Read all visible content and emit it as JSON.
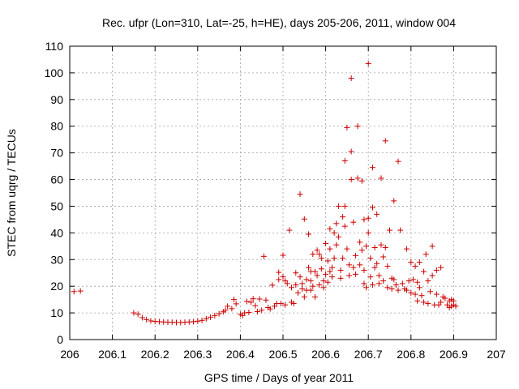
{
  "chart_data": {
    "type": "scatter",
    "title": "Rec. ufpr (Lon=310, Lat=-25, h=HE), days 205-206, 2011, window 004",
    "xlabel": "GPS time / Days of year 2011",
    "ylabel": "STEC from uqrg / TECUs",
    "xlim": [
      206,
      207
    ],
    "ylim": [
      0,
      110
    ],
    "xticks": [
      206,
      206.1,
      206.2,
      206.3,
      206.4,
      206.5,
      206.6,
      206.7,
      206.8,
      206.9,
      207
    ],
    "xtick_labels": [
      "206",
      "206.1",
      "206.2",
      "206.3",
      "206.4",
      "206.5",
      "206.6",
      "206.7",
      "206.8",
      "206.9",
      "207"
    ],
    "yticks": [
      0,
      10,
      20,
      30,
      40,
      50,
      60,
      70,
      80,
      90,
      100,
      110
    ],
    "ytick_labels": [
      "0",
      "10",
      "20",
      "30",
      "40",
      "50",
      "60",
      "70",
      "80",
      "90",
      "100",
      "110"
    ],
    "grid": true,
    "marker": "+",
    "color": "#cc0000",
    "series": [
      {
        "name": "STEC",
        "points": [
          [
            206.01,
            18
          ],
          [
            206.025,
            18.2
          ],
          [
            206.15,
            10
          ],
          [
            206.16,
            9.5
          ],
          [
            206.17,
            8.2
          ],
          [
            206.18,
            7.5
          ],
          [
            206.19,
            7.0
          ],
          [
            206.2,
            6.8
          ],
          [
            206.21,
            6.7
          ],
          [
            206.22,
            6.6
          ],
          [
            206.23,
            6.5
          ],
          [
            206.24,
            6.5
          ],
          [
            206.25,
            6.4
          ],
          [
            206.26,
            6.4
          ],
          [
            206.27,
            6.5
          ],
          [
            206.28,
            6.6
          ],
          [
            206.29,
            6.7
          ],
          [
            206.3,
            6.9
          ],
          [
            206.31,
            7.2
          ],
          [
            206.32,
            7.8
          ],
          [
            206.33,
            8.4
          ],
          [
            206.34,
            9.0
          ],
          [
            206.35,
            9.7
          ],
          [
            206.36,
            10.4
          ],
          [
            206.365,
            11.0
          ],
          [
            206.37,
            12.5
          ],
          [
            206.38,
            11.6
          ],
          [
            206.385,
            15.0
          ],
          [
            206.39,
            13.4
          ],
          [
            206.4,
            9.5
          ],
          [
            206.405,
            9.0
          ],
          [
            206.41,
            10.0
          ],
          [
            206.415,
            14.3
          ],
          [
            206.42,
            10.2
          ],
          [
            206.425,
            14.0
          ],
          [
            206.43,
            15.3
          ],
          [
            206.435,
            12.7
          ],
          [
            206.44,
            10.5
          ],
          [
            206.445,
            15.2
          ],
          [
            206.45,
            11.0
          ],
          [
            206.455,
            31.2
          ],
          [
            206.46,
            14.8
          ],
          [
            206.465,
            12.0
          ],
          [
            206.47,
            11.5
          ],
          [
            206.475,
            20.4
          ],
          [
            206.48,
            12.5
          ],
          [
            206.485,
            13.5
          ],
          [
            206.49,
            25.2
          ],
          [
            206.49,
            22.5
          ],
          [
            206.495,
            13.5
          ],
          [
            206.5,
            23.5
          ],
          [
            206.5,
            31.6
          ],
          [
            206.505,
            22.0
          ],
          [
            206.505,
            13.0
          ],
          [
            206.51,
            21.0
          ],
          [
            206.515,
            41.0
          ],
          [
            206.52,
            14.0
          ],
          [
            206.52,
            19.5
          ],
          [
            206.525,
            13.5
          ],
          [
            206.53,
            25.0
          ],
          [
            206.53,
            20.5
          ],
          [
            206.535,
            17.5
          ],
          [
            206.54,
            54.5
          ],
          [
            206.54,
            23.5
          ],
          [
            206.545,
            21.0
          ],
          [
            206.545,
            19.0
          ],
          [
            206.55,
            45.2
          ],
          [
            206.55,
            16.0
          ],
          [
            206.555,
            22.5
          ],
          [
            206.555,
            18.5
          ],
          [
            206.56,
            39.5
          ],
          [
            206.56,
            27.0
          ],
          [
            206.565,
            25.5
          ],
          [
            206.565,
            22.0
          ],
          [
            206.565,
            18.5
          ],
          [
            206.57,
            32.0
          ],
          [
            206.57,
            20.0
          ],
          [
            206.575,
            25.5
          ],
          [
            206.575,
            16.0
          ],
          [
            206.58,
            33.5
          ],
          [
            206.58,
            24.0
          ],
          [
            206.585,
            32.0
          ],
          [
            206.585,
            20.5
          ],
          [
            206.59,
            30.5
          ],
          [
            206.59,
            26.5
          ],
          [
            206.595,
            22.0
          ],
          [
            206.595,
            19.5
          ],
          [
            206.6,
            36.0
          ],
          [
            206.6,
            24.5
          ],
          [
            206.605,
            29.5
          ],
          [
            206.605,
            21.5
          ],
          [
            206.61,
            41.5
          ],
          [
            206.61,
            34.0
          ],
          [
            206.61,
            25.5
          ],
          [
            206.615,
            27.0
          ],
          [
            206.615,
            23.5
          ],
          [
            206.62,
            40.0
          ],
          [
            206.62,
            30.5
          ],
          [
            206.625,
            43.5
          ],
          [
            206.625,
            35.5
          ],
          [
            206.63,
            50.0
          ],
          [
            206.63,
            38.5
          ],
          [
            206.635,
            26.0
          ],
          [
            206.635,
            23.0
          ],
          [
            206.64,
            46.0
          ],
          [
            206.64,
            30.5
          ],
          [
            206.645,
            67.0
          ],
          [
            206.645,
            50.0
          ],
          [
            206.645,
            42.5
          ],
          [
            206.65,
            79.5
          ],
          [
            206.65,
            34.0
          ],
          [
            206.655,
            28.0
          ],
          [
            206.655,
            24.0
          ],
          [
            206.66,
            98.0
          ],
          [
            206.66,
            70.5
          ],
          [
            206.66,
            60.0
          ],
          [
            206.665,
            44.0
          ],
          [
            206.665,
            27.0
          ],
          [
            206.67,
            31.5
          ],
          [
            206.67,
            24.5
          ],
          [
            206.675,
            80.0
          ],
          [
            206.675,
            60.5
          ],
          [
            206.68,
            36.5
          ],
          [
            206.68,
            28.0
          ],
          [
            206.685,
            59.5
          ],
          [
            206.685,
            33.5
          ],
          [
            206.69,
            45.0
          ],
          [
            206.69,
            26.0
          ],
          [
            206.69,
            21.0
          ],
          [
            206.695,
            35.0
          ],
          [
            206.695,
            19.5
          ],
          [
            206.7,
            103.5
          ],
          [
            206.7,
            45.5
          ],
          [
            206.7,
            40.0
          ],
          [
            206.705,
            30.5
          ],
          [
            206.705,
            23.5
          ],
          [
            206.71,
            64.5
          ],
          [
            206.71,
            49.5
          ],
          [
            206.71,
            20.5
          ],
          [
            206.715,
            34.5
          ],
          [
            206.715,
            27.0
          ],
          [
            206.72,
            47.0
          ],
          [
            206.72,
            28.5
          ],
          [
            206.725,
            24.0
          ],
          [
            206.725,
            21.0
          ],
          [
            206.73,
            60.5
          ],
          [
            206.73,
            35.5
          ],
          [
            206.735,
            31.0
          ],
          [
            206.735,
            22.0
          ],
          [
            206.74,
            74.5
          ],
          [
            206.74,
            34.5
          ],
          [
            206.745,
            27.5
          ],
          [
            206.745,
            19.5
          ],
          [
            206.75,
            41.0
          ],
          [
            206.755,
            23.0
          ],
          [
            206.755,
            19.0
          ],
          [
            206.76,
            52.0
          ],
          [
            206.76,
            22.5
          ],
          [
            206.765,
            20.5
          ],
          [
            206.77,
            66.8
          ],
          [
            206.77,
            18.5
          ],
          [
            206.775,
            41.0
          ],
          [
            206.78,
            21.0
          ],
          [
            206.785,
            19.0
          ],
          [
            206.79,
            34.0
          ],
          [
            206.79,
            18.5
          ],
          [
            206.795,
            22.0
          ],
          [
            206.8,
            29.0
          ],
          [
            206.8,
            17.5
          ],
          [
            206.805,
            22.5
          ],
          [
            206.81,
            27.5
          ],
          [
            206.81,
            17.0
          ],
          [
            206.815,
            21.5
          ],
          [
            206.815,
            14.5
          ],
          [
            206.82,
            29.0
          ],
          [
            206.82,
            19.5
          ],
          [
            206.825,
            16.5
          ],
          [
            206.83,
            25.5
          ],
          [
            206.83,
            14.0
          ],
          [
            206.835,
            32.0
          ],
          [
            206.84,
            22.0
          ],
          [
            206.84,
            13.5
          ],
          [
            206.845,
            18.0
          ],
          [
            206.85,
            35.0
          ],
          [
            206.85,
            24.0
          ],
          [
            206.855,
            13.0
          ],
          [
            206.86,
            26.0
          ],
          [
            206.86,
            17.0
          ],
          [
            206.865,
            13.0
          ],
          [
            206.87,
            27.0
          ],
          [
            206.87,
            14.0
          ],
          [
            206.875,
            16.0
          ],
          [
            206.88,
            15.5
          ],
          [
            206.885,
            13.0
          ],
          [
            206.89,
            14.5
          ],
          [
            206.89,
            12.0
          ],
          [
            206.895,
            15.0
          ],
          [
            206.895,
            12.5
          ],
          [
            206.9,
            14.5
          ],
          [
            206.9,
            13.0
          ],
          [
            206.905,
            12.5
          ]
        ]
      }
    ]
  }
}
